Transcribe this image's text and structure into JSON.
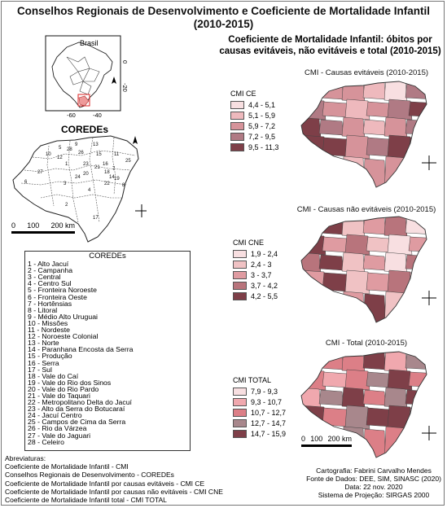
{
  "title_line1": "Conselhos Regionais de Desenvolvimento e Coeficiente de Mortalidade Infantil",
  "title_line2": "(2010-2015)",
  "subtitle": "Coeficiente de Mortalidade Infantil: óbitos por causas evitáveis, não evitáveis e total (2010-2015)",
  "inset": {
    "country_label": "Brasil",
    "lon_ticks": [
      "-60",
      "-40"
    ],
    "lat_ticks": [
      "0",
      "-20"
    ]
  },
  "coredes_title": "COREDEs",
  "coredes_map_numbers": [
    "1",
    "2",
    "3",
    "4",
    "5",
    "6",
    "7",
    "8",
    "9",
    "10",
    "11",
    "12",
    "13",
    "14",
    "15",
    "16",
    "17",
    "18",
    "19",
    "20",
    "21",
    "22",
    "23",
    "24",
    "25",
    "26",
    "27",
    "28"
  ],
  "scale_left": {
    "labels": [
      "0",
      "100",
      "200 km"
    ]
  },
  "scale_right": {
    "labels": [
      "0",
      "100",
      "200 km"
    ]
  },
  "maps": [
    {
      "title": "CMI - Causas evitáveis (2010-2015)",
      "legend_title": "CMI CE",
      "classes": [
        {
          "label": "4,4 - 5,1",
          "color": "#f8dfe1"
        },
        {
          "label": "5,1 - 5,9",
          "color": "#eeb9bd"
        },
        {
          "label": "5,9 - 7,2",
          "color": "#d6939a"
        },
        {
          "label": "7,2 - 9,5",
          "color": "#b07a84"
        },
        {
          "label": "9,5 - 11,3",
          "color": "#7e3f48"
        }
      ]
    },
    {
      "title": "CMI - Causas não evitáveis (2010-2015)",
      "legend_title": "CMI CNE",
      "classes": [
        {
          "label": "1,9 - 2,4",
          "color": "#f8dfe1"
        },
        {
          "label": "2,4 - 3",
          "color": "#f0c2c4"
        },
        {
          "label": "3 - 3,7",
          "color": "#df9ba1"
        },
        {
          "label": "3,7 - 4,2",
          "color": "#b8747c"
        },
        {
          "label": "4,2 - 5,5",
          "color": "#7e3f48"
        }
      ]
    },
    {
      "title": "CMI - Total (2010-2015)",
      "legend_title": "CMI TOTAL",
      "classes": [
        {
          "label": "7,9 - 9,3",
          "color": "#f8dfe1"
        },
        {
          "label": "9,3 - 10,7",
          "color": "#f0a8ae"
        },
        {
          "label": "10,7 - 12,7",
          "color": "#dc7f87"
        },
        {
          "label": "12,7 - 14,7",
          "color": "#a8878c"
        },
        {
          "label": "14,7 - 15,9",
          "color": "#7e3f48"
        }
      ]
    }
  ],
  "coredes_list": {
    "heading": "COREDEs",
    "items": [
      "1 - Alto Jacuí",
      "2 - Campanha",
      "3 - Central",
      "4 - Centro Sul",
      "5 - Fronteira Noroeste",
      "6 - Fronteira Oeste",
      "7 - Hortênsias",
      "8 - Litoral",
      "9 - Médio Alto Uruguai",
      "10 - Missões",
      "11 - Nordeste",
      "12 - Noroeste Colonial",
      "13 - Norte",
      "14 - Paranhana Encosta da Serra",
      "15 - Produção",
      "16 - Serra",
      "17 - Sul",
      "18 - Vale do Caí",
      "19 - Vale do Rio dos Sinos",
      "20 - Vale do Rio Pardo",
      "21 - Vale do Taquari",
      "22 - Metropolitano Delta do Jacuí",
      "23 - Alto da Serra do Botucaraí",
      "24 - Jacuí Centro",
      "25 - Campos de Cima da Serra",
      "26 - Rio da Várzea",
      "27 - Vale do Jaguari",
      "28 - Celeiro"
    ]
  },
  "abbreviations": {
    "heading": "Abreviaturas:",
    "lines": [
      "Coeficiente de Mortalidade Infantil - CMI",
      "Conselhos Regionais de Desenvolvimento - COREDEs",
      "Coeficiente de Mortalidade Infantil por causas evitáveis - CMI CE",
      "Coeficiente de Mortalidade Infantil por causas não evitáveis - CMI CNE",
      "Coeficiente de Mortalidade Infantil total - CMI TOTAL"
    ]
  },
  "credits": [
    "Cartografia: Fabrini Carvalho Mendes",
    "Fonte de Dados: DEE, SIM, SINASC (2020)",
    "Data: 22 nov. 2020",
    "Sistema de Projeção: SIRGAS 2000"
  ]
}
